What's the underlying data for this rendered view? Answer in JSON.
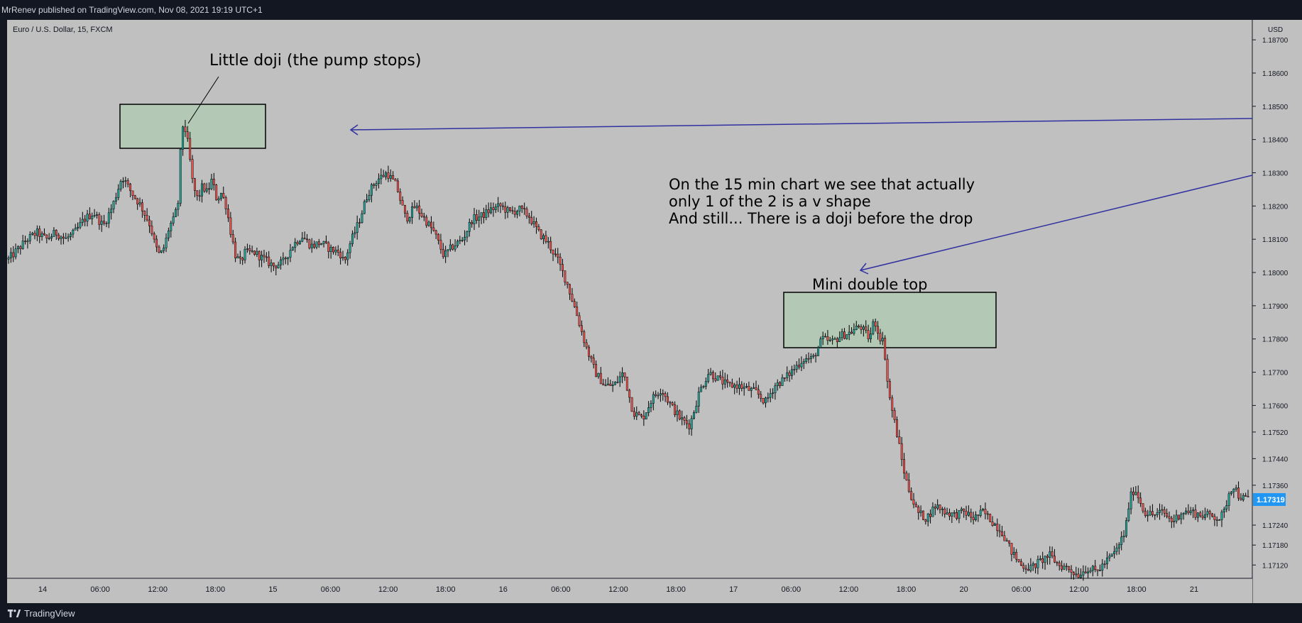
{
  "header": {
    "published_text": "MrRenev published on TradingView.com, Nov 08, 2021 19:19 UTC+1"
  },
  "symbol": {
    "label": "Euro / U.S. Dollar, 15, FXCM"
  },
  "price_axis": {
    "currency": "USD",
    "ticks": [
      "1.18700",
      "1.18600",
      "1.18500",
      "1.18400",
      "1.18300",
      "1.18200",
      "1.18100",
      "1.18000",
      "1.17900",
      "1.17800",
      "1.17700",
      "1.17600",
      "1.17520",
      "1.17440",
      "1.17360",
      "1.17240",
      "1.17180",
      "1.17120"
    ],
    "current_price": "1.17319"
  },
  "time_axis": {
    "ticks": [
      "14",
      "06:00",
      "12:00",
      "18:00",
      "15",
      "06:00",
      "12:00",
      "18:00",
      "16",
      "06:00",
      "12:00",
      "18:00",
      "17",
      "06:00",
      "12:00",
      "18:00",
      "20",
      "06:00",
      "12:00",
      "18:00",
      "21"
    ]
  },
  "annotations": {
    "doji_label": "Little doji (the pump stops)",
    "comment_line1": "On the 15 min chart we see that actually",
    "comment_line2": "only 1 of the 2 is a v shape",
    "comment_line3": "And still... There is a doji before the drop",
    "double_top_label": "Mini double top"
  },
  "footer": {
    "brand": "TradingView"
  },
  "colors": {
    "background": "#c0c0c0",
    "frame": "#131722",
    "up": "#26a69a",
    "down": "#ef5350",
    "candle_edge": "#000000",
    "arrow": "#3030a0",
    "highlight_fill": "#b3c9b5",
    "price_badge": "#2196f3"
  },
  "chart_data": {
    "type": "candlestick",
    "instrument": "Euro / U.S. Dollar",
    "timeframe": "15",
    "source": "FXCM",
    "ylim": [
      1.1708,
      1.1876
    ],
    "price_path": [
      [
        0,
        1.1804
      ],
      [
        4,
        1.1807
      ],
      [
        8,
        1.181
      ],
      [
        12,
        1.1812
      ],
      [
        16,
        1.181
      ],
      [
        20,
        1.1812
      ],
      [
        24,
        1.181
      ],
      [
        28,
        1.1812
      ],
      [
        32,
        1.1816
      ],
      [
        36,
        1.1818
      ],
      [
        40,
        1.1814
      ],
      [
        44,
        1.182
      ],
      [
        48,
        1.1829
      ],
      [
        52,
        1.1824
      ],
      [
        56,
        1.182
      ],
      [
        60,
        1.1814
      ],
      [
        62,
        1.1808
      ],
      [
        64,
        1.1805
      ],
      [
        66,
        1.1808
      ],
      [
        68,
        1.1814
      ],
      [
        70,
        1.1816
      ],
      [
        72,
        1.1822
      ],
      [
        73,
        1.1842
      ],
      [
        74,
        1.1845
      ],
      [
        75,
        1.1842
      ],
      [
        76,
        1.1838
      ],
      [
        78,
        1.1826
      ],
      [
        80,
        1.1822
      ],
      [
        82,
        1.1826
      ],
      [
        84,
        1.1824
      ],
      [
        86,
        1.1828
      ],
      [
        88,
        1.1822
      ],
      [
        90,
        1.1824
      ],
      [
        92,
        1.182
      ],
      [
        94,
        1.1812
      ],
      [
        96,
        1.1805
      ],
      [
        98,
        1.1803
      ],
      [
        100,
        1.1806
      ],
      [
        104,
        1.1806
      ],
      [
        108,
        1.1804
      ],
      [
        112,
        1.1802
      ],
      [
        116,
        1.1803
      ],
      [
        120,
        1.1808
      ],
      [
        124,
        1.1811
      ],
      [
        128,
        1.1808
      ],
      [
        132,
        1.1809
      ],
      [
        136,
        1.1807
      ],
      [
        140,
        1.1806
      ],
      [
        142,
        1.1803
      ],
      [
        144,
        1.1808
      ],
      [
        148,
        1.1815
      ],
      [
        152,
        1.1824
      ],
      [
        156,
        1.1828
      ],
      [
        160,
        1.183
      ],
      [
        164,
        1.1826
      ],
      [
        168,
        1.1816
      ],
      [
        172,
        1.182
      ],
      [
        176,
        1.1816
      ],
      [
        180,
        1.1812
      ],
      [
        184,
        1.1805
      ],
      [
        188,
        1.1808
      ],
      [
        192,
        1.181
      ],
      [
        196,
        1.1816
      ],
      [
        200,
        1.1817
      ],
      [
        204,
        1.1819
      ],
      [
        208,
        1.182
      ],
      [
        212,
        1.1818
      ],
      [
        216,
        1.1819
      ],
      [
        220,
        1.1817
      ],
      [
        224,
        1.1812
      ],
      [
        228,
        1.1809
      ],
      [
        232,
        1.1804
      ],
      [
        236,
        1.1797
      ],
      [
        240,
        1.1788
      ],
      [
        244,
        1.1778
      ],
      [
        248,
        1.177
      ],
      [
        252,
        1.1766
      ],
      [
        256,
        1.1766
      ],
      [
        260,
        1.177
      ],
      [
        264,
        1.1758
      ],
      [
        268,
        1.1756
      ],
      [
        272,
        1.1762
      ],
      [
        276,
        1.1765
      ],
      [
        280,
        1.176
      ],
      [
        284,
        1.1756
      ],
      [
        288,
        1.1754
      ],
      [
        292,
        1.1764
      ],
      [
        296,
        1.177
      ],
      [
        300,
        1.1768
      ],
      [
        304,
        1.1766
      ],
      [
        308,
        1.1766
      ],
      [
        312,
        1.1765
      ],
      [
        316,
        1.1764
      ],
      [
        320,
        1.1761
      ],
      [
        324,
        1.1766
      ],
      [
        328,
        1.1768
      ],
      [
        332,
        1.1771
      ],
      [
        336,
        1.1774
      ],
      [
        340,
        1.1774
      ],
      [
        344,
        1.178
      ],
      [
        348,
        1.1779
      ],
      [
        352,
        1.1781
      ],
      [
        356,
        1.1782
      ],
      [
        360,
        1.1784
      ],
      [
        364,
        1.178
      ],
      [
        366,
        1.1786
      ],
      [
        368,
        1.1781
      ],
      [
        370,
        1.1779
      ],
      [
        372,
        1.1764
      ],
      [
        374,
        1.1757
      ],
      [
        376,
        1.175
      ],
      [
        378,
        1.1742
      ],
      [
        380,
        1.1736
      ],
      [
        384,
        1.1728
      ],
      [
        388,
        1.1726
      ],
      [
        392,
        1.173
      ],
      [
        396,
        1.1728
      ],
      [
        400,
        1.1727
      ],
      [
        404,
        1.1728
      ],
      [
        408,
        1.1726
      ],
      [
        412,
        1.1728
      ],
      [
        416,
        1.1725
      ],
      [
        420,
        1.1722
      ],
      [
        424,
        1.1716
      ],
      [
        428,
        1.1712
      ],
      [
        432,
        1.1711
      ],
      [
        436,
        1.1713
      ],
      [
        440,
        1.1715
      ],
      [
        444,
        1.1712
      ],
      [
        448,
        1.1711
      ],
      [
        452,
        1.1709
      ],
      [
        456,
        1.1711
      ],
      [
        460,
        1.171
      ],
      [
        464,
        1.1713
      ],
      [
        468,
        1.1716
      ],
      [
        472,
        1.1722
      ],
      [
        474,
        1.1732
      ],
      [
        476,
        1.1735
      ],
      [
        478,
        1.1732
      ],
      [
        480,
        1.1728
      ],
      [
        484,
        1.1727
      ],
      [
        488,
        1.1728
      ],
      [
        492,
        1.1725
      ],
      [
        496,
        1.1728
      ],
      [
        500,
        1.1728
      ],
      [
        504,
        1.1727
      ],
      [
        508,
        1.1727
      ],
      [
        512,
        1.1726
      ],
      [
        514,
        1.1728
      ],
      [
        516,
        1.1734
      ],
      [
        518,
        1.1736
      ],
      [
        520,
        1.1733
      ],
      [
        522,
        1.1732
      ],
      [
        524,
        1.1732
      ]
    ]
  }
}
